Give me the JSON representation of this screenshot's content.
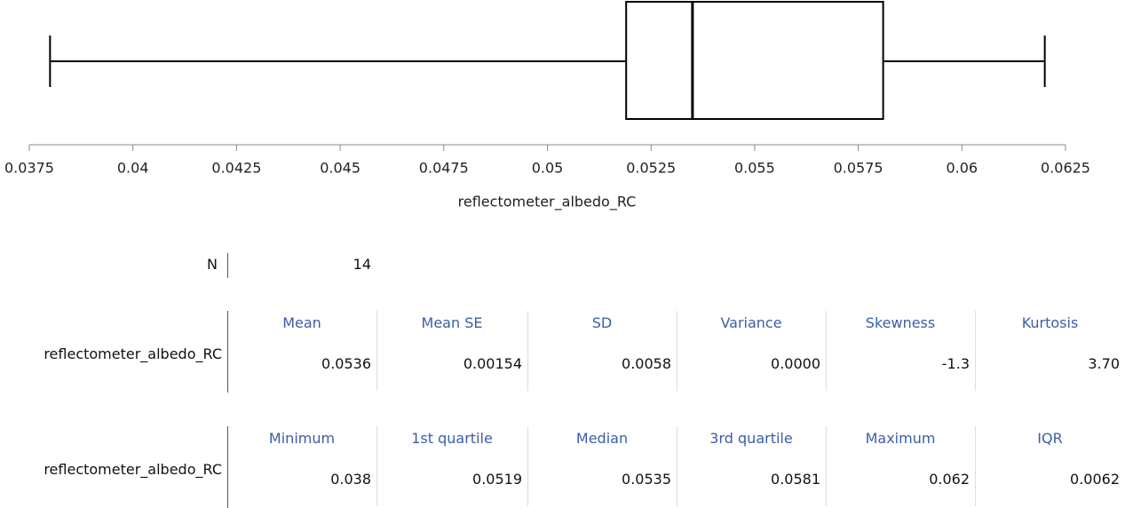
{
  "chart_data": {
    "type": "box",
    "xlabel": "reflectometer_albedo_RC",
    "box": {
      "min": 0.038,
      "q1": 0.0519,
      "median": 0.0535,
      "q3": 0.0581,
      "max": 0.062
    },
    "xlim": [
      0.0375,
      0.0625
    ],
    "xticks": [
      0.0375,
      0.04,
      0.0425,
      0.045,
      0.0475,
      0.05,
      0.0525,
      0.055,
      0.0575,
      0.06,
      0.0625
    ],
    "color": "#000000"
  },
  "summary": {
    "label": "N",
    "value": "14"
  },
  "tables": [
    {
      "headers": [
        "Mean",
        "Mean SE",
        "SD",
        "Variance",
        "Skewness",
        "Kurtosis"
      ],
      "row_label": "reflectometer_albedo_RC",
      "values": [
        "0.0536",
        "0.00154",
        "0.0058",
        "0.0000",
        "-1.3",
        "3.70"
      ]
    },
    {
      "headers": [
        "Minimum",
        "1st quartile",
        "Median",
        "3rd quartile",
        "Maximum",
        "IQR"
      ],
      "row_label": "reflectometer_albedo_RC",
      "values": [
        "0.038",
        "0.0519",
        "0.0535",
        "0.0581",
        "0.062",
        "0.0062"
      ]
    }
  ]
}
